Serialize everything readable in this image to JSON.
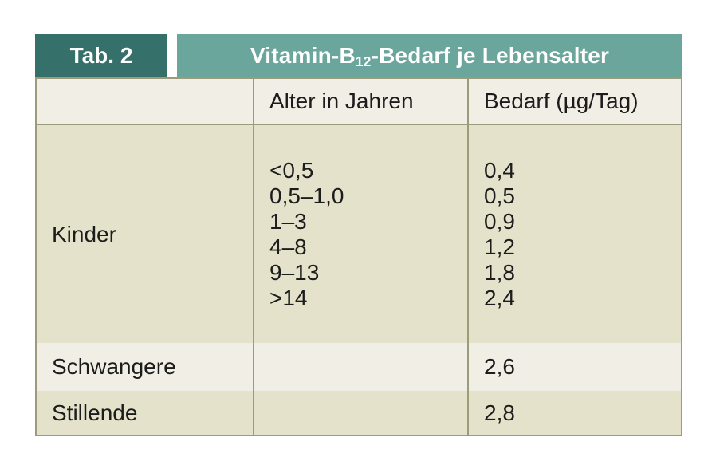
{
  "table_label": "Tab. 2",
  "title": {
    "prefix": "Vitamin-B",
    "subscript": "12",
    "suffix": "-Bedarf je Lebensalter"
  },
  "columns": {
    "group": "",
    "age": "Alter in Jahren",
    "requirement": "Bedarf (µg/Tag)"
  },
  "rows": [
    {
      "group": "Kinder",
      "ages": [
        "<0,5",
        "0,5–1,0",
        "1–3",
        "4–8",
        "9–13",
        ">14"
      ],
      "values": [
        "0,4",
        "0,5",
        "0,9",
        "1,2",
        "1,8",
        "2,4"
      ]
    },
    {
      "group": "Schwangere",
      "age": "",
      "value": "2,6"
    },
    {
      "group": "Stillende",
      "age": "",
      "value": "2,8"
    }
  ],
  "chart_data": {
    "type": "table",
    "title": "Vitamin-B12-Bedarf je Lebensalter",
    "columns": [
      "",
      "Alter in Jahren",
      "Bedarf (µg/Tag)"
    ],
    "cells": [
      [
        "Kinder",
        "<0,5",
        "0,4"
      ],
      [
        "Kinder",
        "0,5–1,0",
        "0,5"
      ],
      [
        "Kinder",
        "1–3",
        "0,9"
      ],
      [
        "Kinder",
        "4–8",
        "1,2"
      ],
      [
        "Kinder",
        "9–13",
        "1,8"
      ],
      [
        "Kinder",
        ">14",
        "2,4"
      ],
      [
        "Schwangere",
        "",
        "2,6"
      ],
      [
        "Stillende",
        "",
        "2,8"
      ]
    ]
  },
  "colors": {
    "dark_teal": "#35706B",
    "light_teal": "#6BA69C",
    "row_cream": "#F1EFE5",
    "row_beige": "#E5E2CB",
    "border_olive": "#9C9C7D",
    "header_text": "#FFFFFF",
    "body_text": "#1C1C1C"
  }
}
